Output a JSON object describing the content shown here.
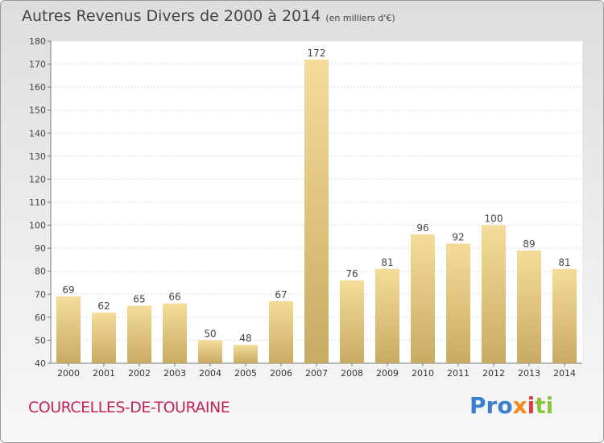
{
  "header": {
    "title": "Autres Revenus Divers de 2000 à 2014",
    "unit": "(en milliers d'€)"
  },
  "footer": {
    "commune": "COURCELLES-DE-TOURAINE",
    "logo": {
      "part1": "Pro",
      "part2": "x",
      "part3": "i",
      "part4": "ti"
    }
  },
  "colors": {
    "bar_top": "#f6dc9a",
    "bar_bottom": "#c8ab63",
    "commune": "#c0245a"
  },
  "chart_data": {
    "type": "bar",
    "title": "Autres Revenus Divers de 2000 à 2014",
    "subtitle": "(en milliers d'€)",
    "xlabel": "",
    "ylabel": "",
    "categories": [
      "2000",
      "2001",
      "2002",
      "2003",
      "2004",
      "2005",
      "2006",
      "2007",
      "2008",
      "2009",
      "2010",
      "2011",
      "2012",
      "2013",
      "2014"
    ],
    "values": [
      69,
      62,
      65,
      66,
      50,
      48,
      67,
      172,
      76,
      81,
      96,
      92,
      100,
      89,
      81
    ],
    "ylim": [
      40,
      180
    ],
    "yticks": [
      40,
      50,
      60,
      70,
      80,
      90,
      100,
      110,
      120,
      130,
      140,
      150,
      160,
      170,
      180
    ],
    "grid": true,
    "data_labels": true
  }
}
